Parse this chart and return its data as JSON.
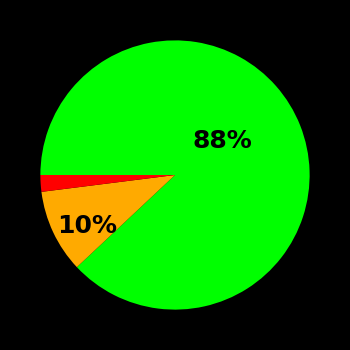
{
  "slices": [
    88,
    10,
    2
  ],
  "colors": [
    "#00ff00",
    "#ffaa00",
    "#ff0000"
  ],
  "labels": [
    "88%",
    "10%",
    ""
  ],
  "background_color": "#000000",
  "startangle": 180,
  "counterclock": false,
  "label_fontsize": 18,
  "label_fontweight": "bold",
  "figsize": [
    3.5,
    3.5
  ],
  "dpi": 100
}
